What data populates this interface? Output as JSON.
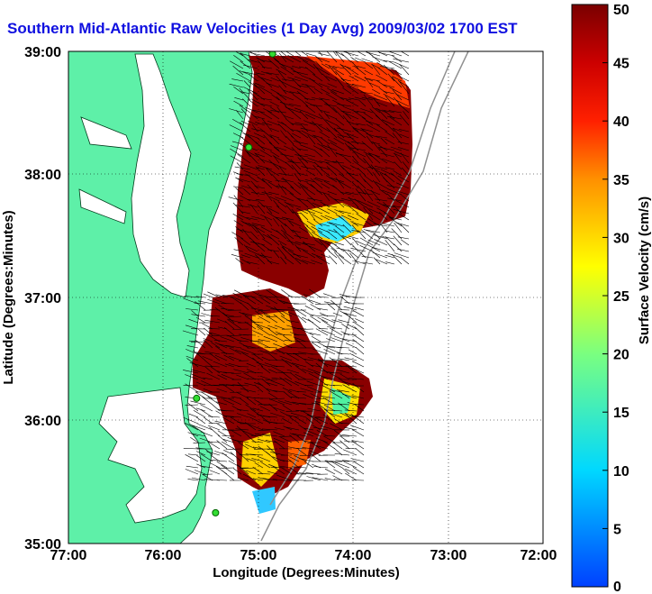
{
  "title": "Southern Mid-Atlantic Raw Velocities (1 Day Avg) 2009/03/02 1700 EST",
  "map": {
    "xlabel": "Longitude (Degrees:Minutes)",
    "ylabel": "Latitude (Degrees:Minutes)",
    "lon_ticks": [
      "77:00",
      "76:00",
      "75:00",
      "74:00",
      "73:00",
      "72:00"
    ],
    "lat_ticks": [
      "39:00",
      "38:00",
      "37:00",
      "36:00",
      "35:00"
    ],
    "lon_range": [
      -77,
      -72
    ],
    "lat_range": [
      35,
      39
    ],
    "grid": true,
    "land_color": "#5ef0a8",
    "stations": [
      {
        "lon": -74.85,
        "lat": 38.98
      },
      {
        "lon": -75.1,
        "lat": 38.22
      },
      {
        "lon": -75.65,
        "lat": 36.18
      },
      {
        "lon": -75.45,
        "lat": 35.25
      }
    ]
  },
  "colorbar": {
    "label": "Surface Velocity (cm/s)",
    "ticks": [
      "0",
      "5",
      "10",
      "15",
      "20",
      "25",
      "30",
      "35",
      "40",
      "45",
      "50"
    ],
    "min": 0,
    "max": 50
  }
}
